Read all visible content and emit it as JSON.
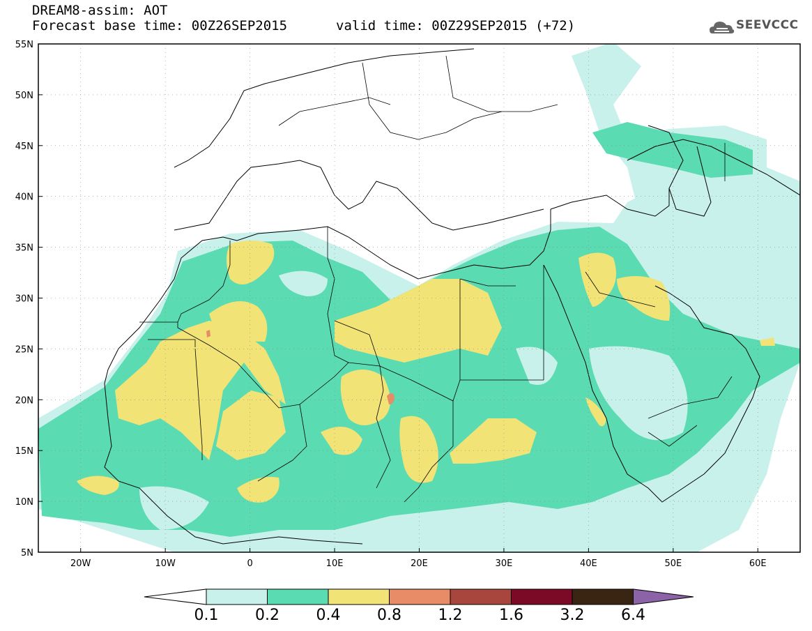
{
  "header": {
    "title": "DREAM8-assim: AOT",
    "base_time": "Forecast base time: 00Z26SEP2015",
    "valid_time": "valid time: 00Z29SEP2015 (+72)",
    "logo_text": "SEEVCCC"
  },
  "map": {
    "lat_range": [
      5,
      55
    ],
    "lon_range": [
      -25,
      65
    ],
    "lat_ticks": [
      "55N",
      "50N",
      "45N",
      "40N",
      "35N",
      "30N",
      "25N",
      "20N",
      "15N",
      "10N",
      "5N"
    ],
    "lon_ticks": [
      "20W",
      "10W",
      "0",
      "10E",
      "20E",
      "30E",
      "40E",
      "50E",
      "60E"
    ],
    "ocean_color": "#ffffff",
    "border_color": "#000000"
  },
  "colorbar": {
    "colors": [
      "#c8f1eb",
      "#5bdbb1",
      "#f2e377",
      "#e88c68",
      "#a8463d",
      "#7a0a25",
      "#3a2512",
      "#8b63a6"
    ],
    "labels": [
      "0.1",
      "0.2",
      "0.4",
      "0.8",
      "1.2",
      "1.6",
      "3.2",
      "6.4"
    ]
  }
}
